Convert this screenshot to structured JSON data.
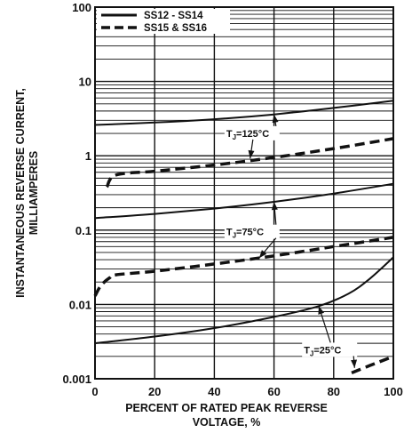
{
  "chart_data": {
    "type": "line",
    "xlabel_lines": [
      "PERCENT OF RATED PEAK REVERSE",
      "VOLTAGE, %"
    ],
    "ylabel_lines": [
      "INSTANTANEOUS REVERSE CURRENT,",
      "MILLIAMPERES"
    ],
    "xlim": [
      0,
      100
    ],
    "ylim": [
      0.001,
      100
    ],
    "yscale": "log",
    "grid": true,
    "legend_position": "top-left",
    "x_ticks": [
      "0",
      "20",
      "40",
      "60",
      "80",
      "100"
    ],
    "y_ticks": [
      "0.001",
      "0.01",
      "0.1",
      "1",
      "10",
      "100"
    ],
    "legend": [
      {
        "label": "SS12 - SS14",
        "style": "solid"
      },
      {
        "label": "SS15 & SS16",
        "style": "dashed"
      }
    ],
    "series": [
      {
        "name": "SS12 - SS14",
        "condition": "TJ=125°C",
        "style": "solid",
        "points": [
          [
            0,
            2.6
          ],
          [
            20,
            2.8
          ],
          [
            40,
            3.1
          ],
          [
            60,
            3.6
          ],
          [
            80,
            4.4
          ],
          [
            100,
            5.5
          ]
        ]
      },
      {
        "name": "SS15 & SS16",
        "condition": "TJ=125°C",
        "style": "dashed",
        "points": [
          [
            4,
            0.38
          ],
          [
            7,
            0.55
          ],
          [
            20,
            0.62
          ],
          [
            40,
            0.75
          ],
          [
            60,
            0.95
          ],
          [
            80,
            1.25
          ],
          [
            100,
            1.7
          ]
        ]
      },
      {
        "name": "SS12 - SS14",
        "condition": "TJ=75°C",
        "style": "solid",
        "points": [
          [
            0,
            0.145
          ],
          [
            20,
            0.165
          ],
          [
            40,
            0.195
          ],
          [
            60,
            0.24
          ],
          [
            80,
            0.31
          ],
          [
            100,
            0.42
          ]
        ]
      },
      {
        "name": "SS15 & SS16",
        "condition": "TJ=75°C",
        "style": "dashed",
        "points": [
          [
            0,
            0.013
          ],
          [
            2,
            0.018
          ],
          [
            5,
            0.023
          ],
          [
            7,
            0.025
          ],
          [
            20,
            0.028
          ],
          [
            40,
            0.035
          ],
          [
            60,
            0.045
          ],
          [
            80,
            0.06
          ],
          [
            100,
            0.08
          ]
        ]
      },
      {
        "name": "SS12 - SS14",
        "condition": "TJ=25°C",
        "style": "solid",
        "points": [
          [
            0,
            0.003
          ],
          [
            20,
            0.0037
          ],
          [
            40,
            0.0048
          ],
          [
            60,
            0.0068
          ],
          [
            75,
            0.0095
          ],
          [
            85,
            0.014
          ],
          [
            92,
            0.022
          ],
          [
            100,
            0.043
          ]
        ]
      },
      {
        "name": "SS15 & SS16",
        "condition": "TJ=25°C",
        "style": "dashed",
        "points": [
          [
            86,
            0.0012
          ],
          [
            92,
            0.0015
          ],
          [
            100,
            0.002
          ]
        ]
      }
    ],
    "annotations": [
      {
        "text": "T",
        "sub": "J",
        "rest": "=125°C",
        "x": 44,
        "y": 1.8,
        "arrows": [
          [
            60,
            3.6
          ],
          [
            52,
            0.92
          ]
        ]
      },
      {
        "text": "T",
        "sub": "J",
        "rest": "=75°C",
        "x": 44,
        "y": 0.085,
        "arrows": [
          [
            60,
            0.24
          ],
          [
            55,
            0.042
          ]
        ]
      },
      {
        "text": "T",
        "sub": "J",
        "rest": "=25°C",
        "x": 70,
        "y": 0.0022,
        "arrows": [
          [
            75,
            0.0095
          ],
          [
            87,
            0.0014
          ]
        ]
      }
    ]
  }
}
